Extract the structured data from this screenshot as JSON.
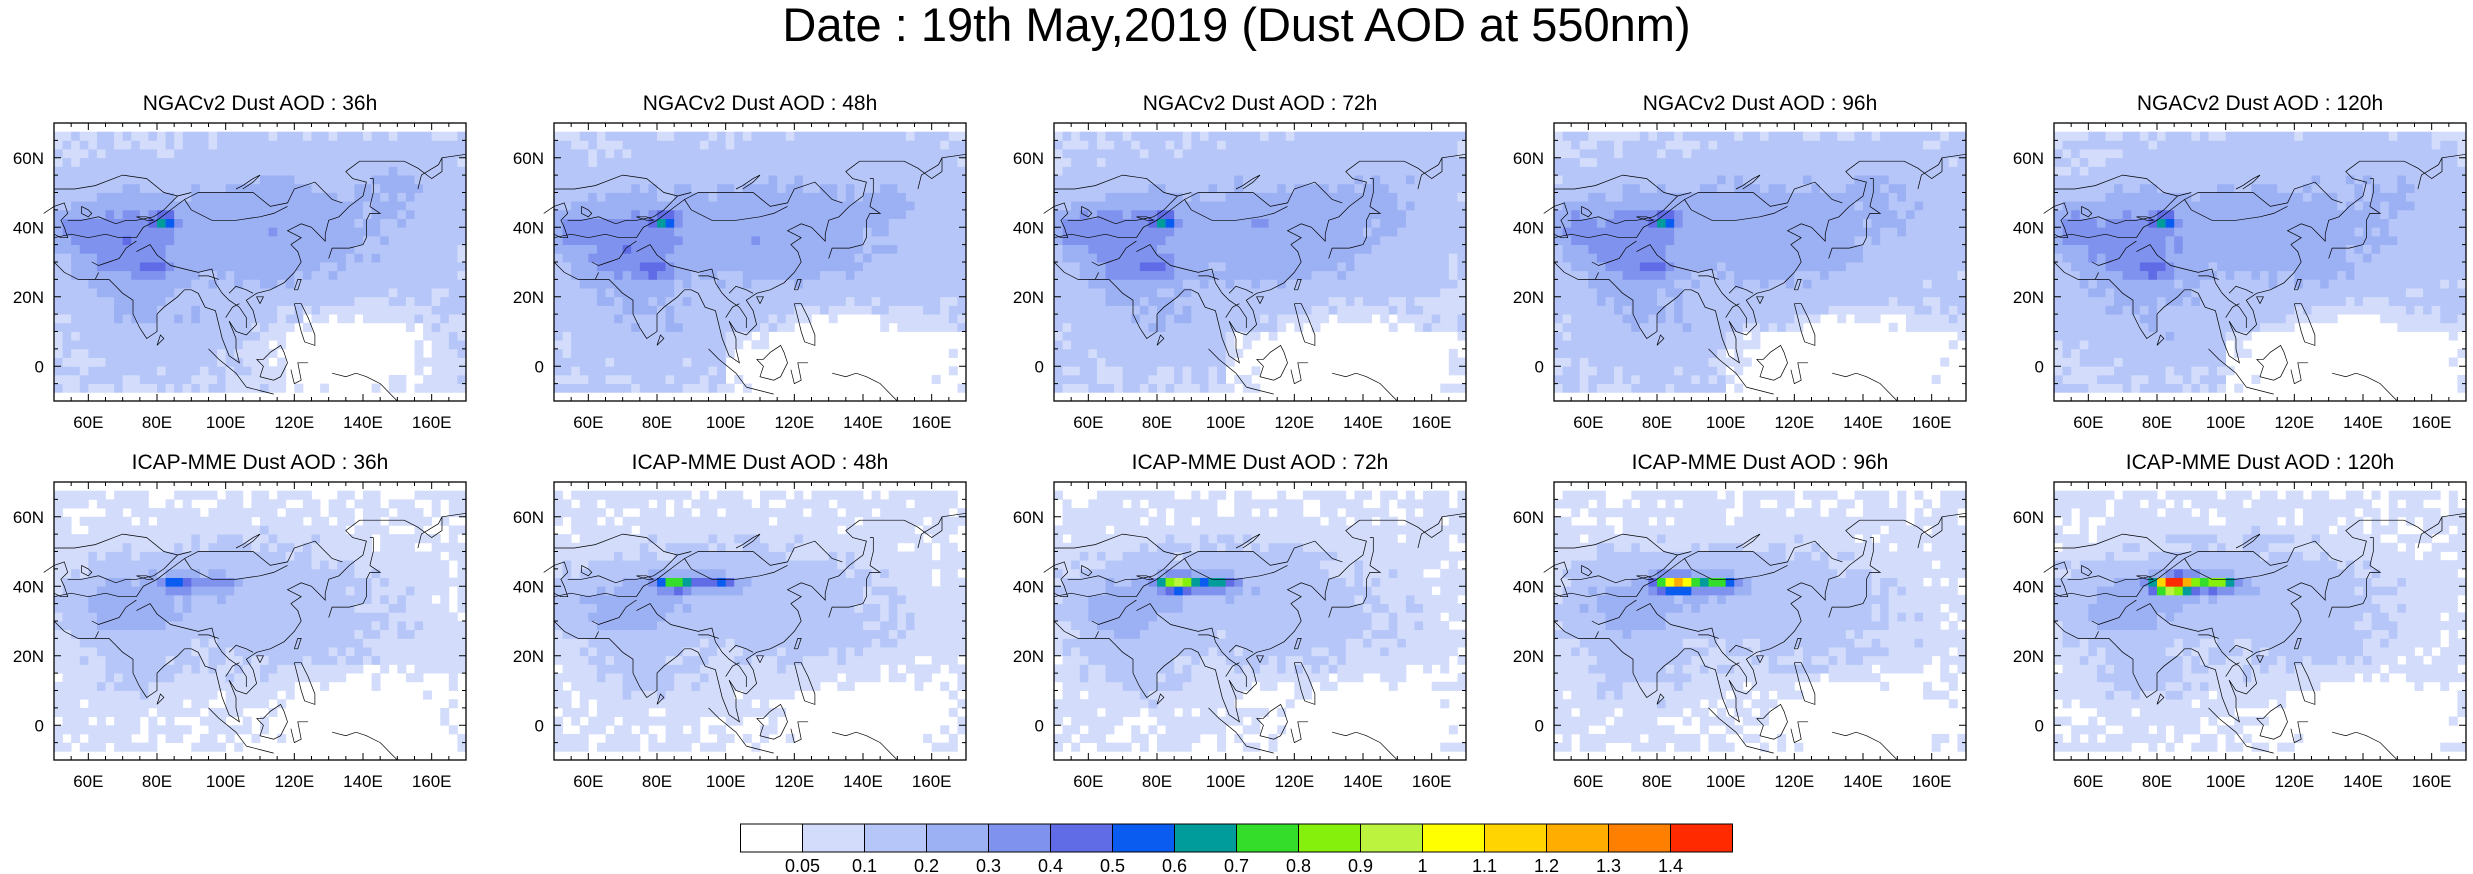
{
  "title": "Date : 19th May,2019 (Dust AOD at 550nm)",
  "rows": [
    {
      "model": "NGACv2",
      "panels": [
        {
          "title": "NGACv2 Dust AOD : 36h"
        },
        {
          "title": "NGACv2 Dust AOD : 48h"
        },
        {
          "title": "NGACv2 Dust AOD : 72h"
        },
        {
          "title": "NGACv2 Dust AOD : 96h"
        },
        {
          "title": "NGACv2 Dust AOD : 120h"
        }
      ]
    },
    {
      "model": "ICAP-MME",
      "panels": [
        {
          "title": "ICAP-MME Dust AOD : 36h"
        },
        {
          "title": "ICAP-MME Dust AOD : 48h"
        },
        {
          "title": "ICAP-MME Dust AOD : 72h"
        },
        {
          "title": "ICAP-MME Dust AOD : 96h"
        },
        {
          "title": "ICAP-MME Dust AOD : 120h"
        }
      ]
    }
  ],
  "axes": {
    "x_ticks": [
      "60E",
      "80E",
      "100E",
      "120E",
      "140E",
      "160E"
    ],
    "x_values": [
      60,
      80,
      100,
      120,
      140,
      160
    ],
    "x_range": [
      50,
      170
    ],
    "y_ticks": [
      "60N",
      "40N",
      "20N",
      "0"
    ],
    "y_values": [
      60,
      40,
      20,
      0
    ],
    "y_range": [
      -10,
      70
    ]
  },
  "colorbar": {
    "labels": [
      "0.05",
      "0.1",
      "0.2",
      "0.3",
      "0.4",
      "0.5",
      "0.6",
      "0.7",
      "0.8",
      "0.9",
      "1",
      "1.1",
      "1.2",
      "1.3",
      "1.4"
    ],
    "colors": [
      "#ffffff",
      "#d3ddfb",
      "#b6c6f8",
      "#9cb0f4",
      "#7f93ee",
      "#5f6ce6",
      "#0a5cf0",
      "#009c9c",
      "#33dd2a",
      "#84f00c",
      "#bcf33f",
      "#ffff00",
      "#ffd400",
      "#ffad00",
      "#ff8000",
      "#ff2a00"
    ]
  }
}
